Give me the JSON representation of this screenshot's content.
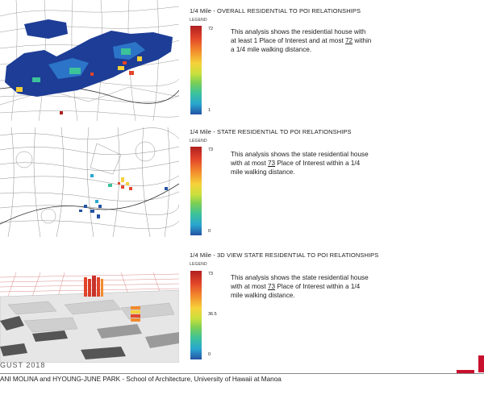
{
  "panels": [
    {
      "title": "1/4 Mile - OVERALL RESIDENTIAL TO POI RELATIONSHIPS",
      "legend_label": "LEGEND",
      "legend_max": "72",
      "legend_min": "1",
      "desc_before": "This analysis shows the residential house with at least 1 Place of Interest and at most ",
      "desc_value": "72",
      "desc_after": " within a 1/4 mile walking distance."
    },
    {
      "title": "1/4 Mile - STATE RESIDENTIAL TO POI RELATIONSHIPS",
      "legend_label": "LEGEND",
      "legend_max": "73",
      "legend_min": "0",
      "desc_before": "This analysis shows the state residential house with at most ",
      "desc_value": "73",
      "desc_after": " Place of Interest within a 1/4 mile walking distance."
    },
    {
      "title": "1/4 Mile - 3D VIEW STATE RESIDENTIAL TO POI RELATIONSHIPS",
      "legend_label": "LEGEND",
      "legend_max": "73",
      "legend_mid": "36.5",
      "legend_min": "0",
      "desc_before": "This analysis shows the state residential house with at most ",
      "desc_value": "73",
      "desc_after": " Place of Interest within a 1/4 mile walking distance."
    }
  ],
  "footer": {
    "date": "GUST 2018",
    "credit": "ANI MOLINA and HYOUNG-JUNE PARK - School of Architecture, University of Hawaii at Manoa"
  },
  "colors": {
    "accent_red": "#c8102e",
    "density_low": "#2453a3",
    "density_high": "#b01f1f"
  }
}
